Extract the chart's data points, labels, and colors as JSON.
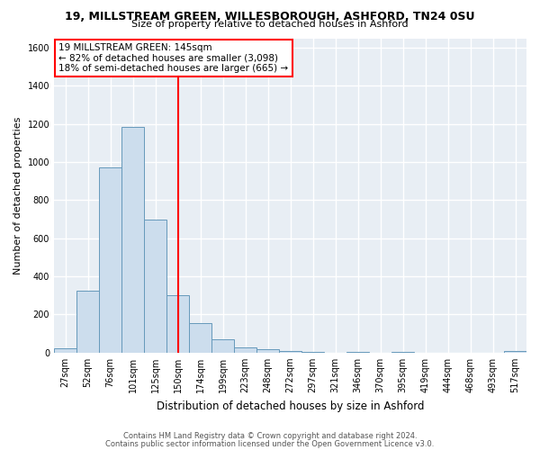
{
  "title_line1": "19, MILLSTREAM GREEN, WILLESBOROUGH, ASHFORD, TN24 0SU",
  "title_line2": "Size of property relative to detached houses in Ashford",
  "xlabel": "Distribution of detached houses by size in Ashford",
  "ylabel": "Number of detached properties",
  "footnote1": "Contains HM Land Registry data © Crown copyright and database right 2024.",
  "footnote2": "Contains public sector information licensed under the Open Government Licence v3.0.",
  "bar_labels": [
    "27sqm",
    "52sqm",
    "76sqm",
    "101sqm",
    "125sqm",
    "150sqm",
    "174sqm",
    "199sqm",
    "223sqm",
    "248sqm",
    "272sqm",
    "297sqm",
    "321sqm",
    "346sqm",
    "370sqm",
    "395sqm",
    "419sqm",
    "444sqm",
    "468sqm",
    "493sqm",
    "517sqm"
  ],
  "bar_values": [
    25,
    325,
    970,
    1185,
    700,
    300,
    155,
    70,
    28,
    20,
    10,
    5,
    0,
    5,
    0,
    5,
    0,
    0,
    0,
    0,
    8
  ],
  "bar_color": "#ccdded",
  "bar_edge_color": "#6699bb",
  "plot_bg_color": "#e8eef4",
  "fig_bg_color": "#ffffff",
  "grid_color": "#ffffff",
  "red_line_index": 5,
  "annotation_text1": "19 MILLSTREAM GREEN: 145sqm",
  "annotation_text2": "← 82% of detached houses are smaller (3,098)",
  "annotation_text3": "18% of semi-detached houses are larger (665) →",
  "ylim": [
    0,
    1650
  ],
  "yticks": [
    0,
    200,
    400,
    600,
    800,
    1000,
    1200,
    1400,
    1600
  ],
  "title1_fontsize": 9,
  "title2_fontsize": 8,
  "axis_label_fontsize": 8,
  "tick_fontsize": 7,
  "annot_fontsize": 7.5,
  "footnote_fontsize": 6
}
